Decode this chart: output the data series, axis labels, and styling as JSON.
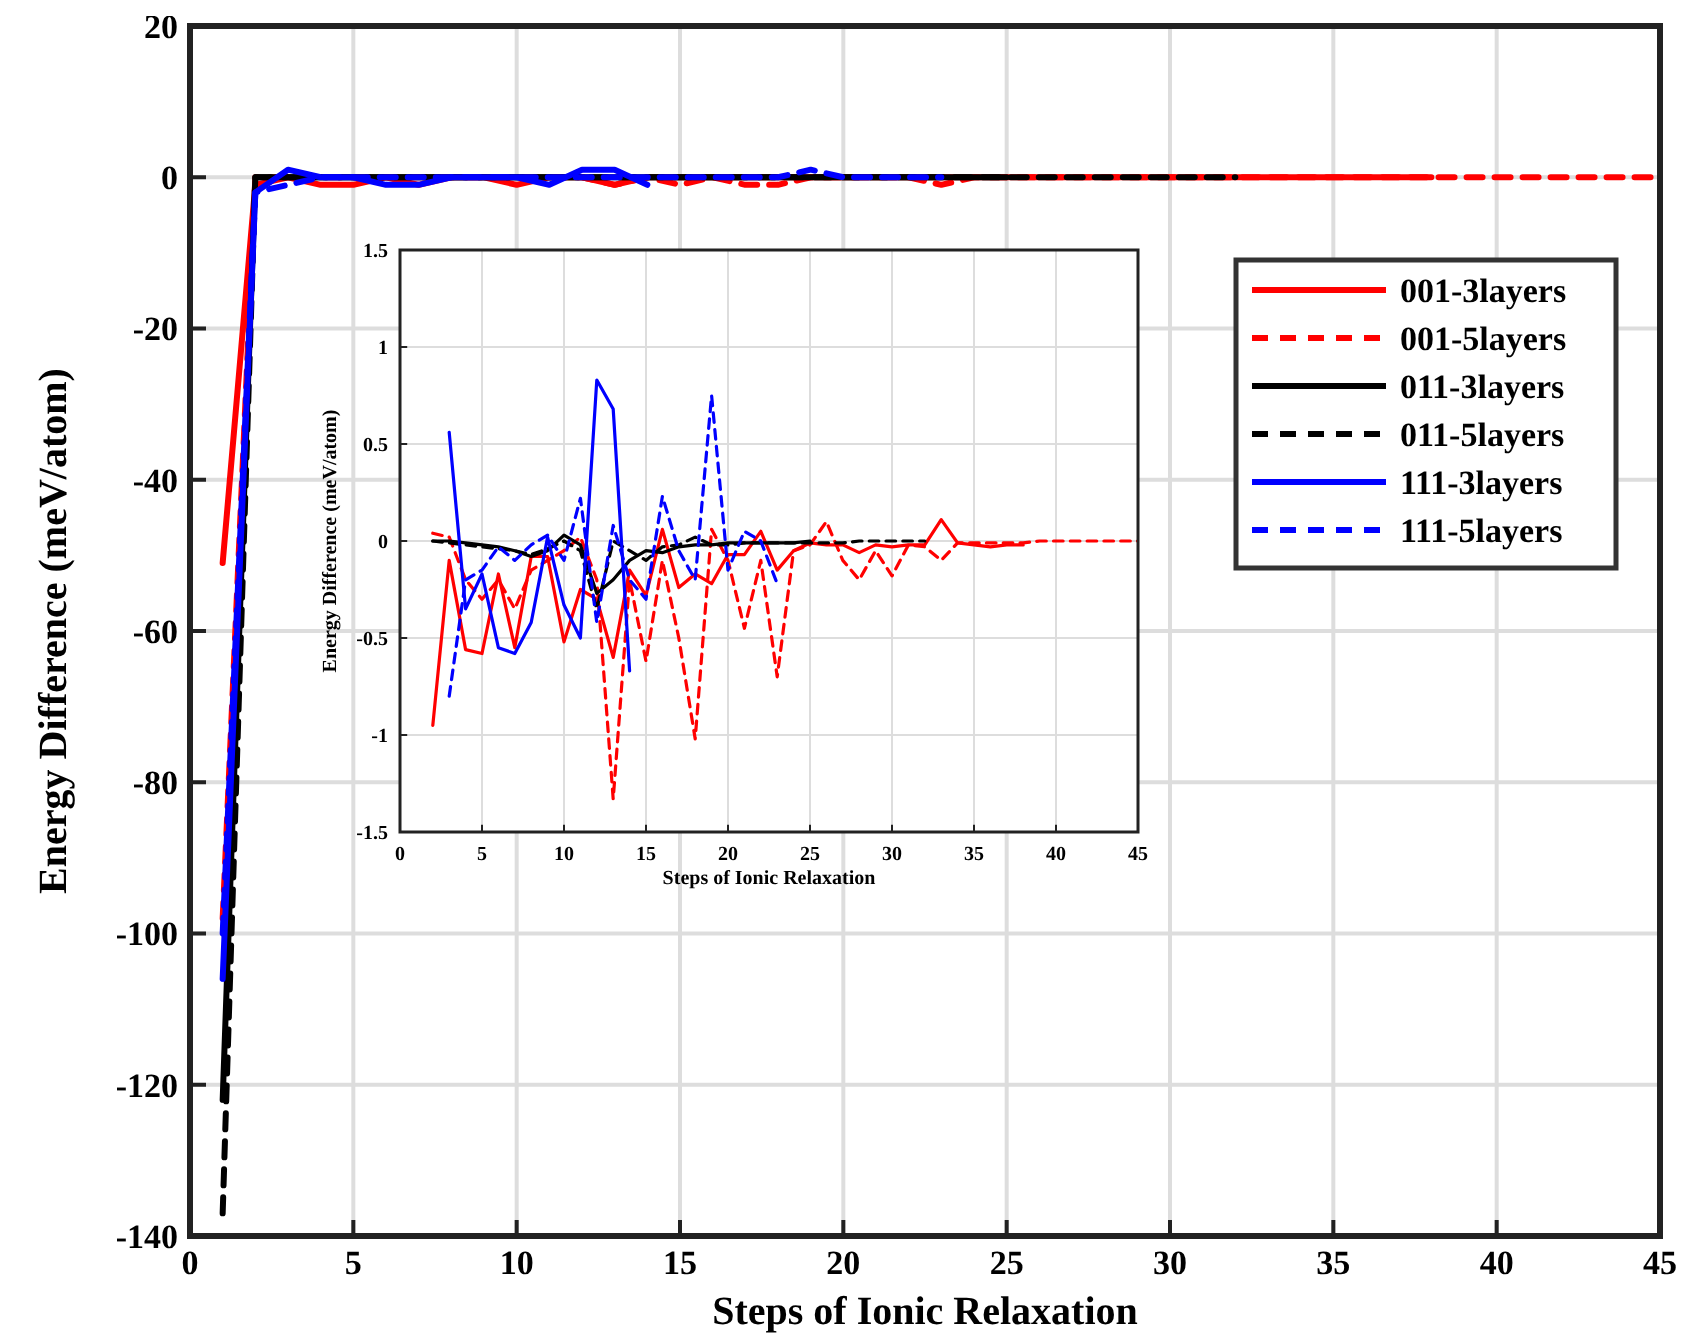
{
  "chart_data": [
    {
      "type": "line",
      "xlabel": "Steps of Ionic Relaxation",
      "ylabel": "Energy Difference (meV/atom)",
      "xlim": [
        0,
        45
      ],
      "ylim": [
        -140,
        20
      ],
      "xticks": [
        0,
        5,
        10,
        15,
        20,
        25,
        30,
        35,
        40,
        45
      ],
      "yticks": [
        -140,
        -120,
        -100,
        -80,
        -60,
        -40,
        -20,
        0,
        20
      ],
      "grid": true,
      "legend": "top right",
      "series": [
        {
          "name": "001-3layers",
          "color": "#ff0000",
          "line_style": "solid",
          "x": [
            1,
            2,
            3,
            4,
            5,
            6,
            7,
            8,
            9,
            10,
            11,
            12,
            13,
            14,
            15,
            16,
            17,
            18,
            19,
            20,
            21,
            22,
            23,
            24,
            25,
            26,
            27,
            28,
            29,
            30,
            31,
            32,
            33,
            34,
            35,
            36,
            37,
            38
          ],
          "values": [
            -51,
            -1,
            0,
            -1,
            -1,
            0,
            -1,
            0,
            0,
            -1,
            0,
            0,
            -1,
            0,
            0,
            0,
            0,
            0,
            0,
            0,
            0,
            0,
            0,
            0,
            0,
            0,
            0,
            0,
            0,
            0,
            0,
            0,
            0,
            0,
            0,
            0,
            0,
            0
          ]
        },
        {
          "name": "001-5layers",
          "color": "#ff0000",
          "line_style": "dashed",
          "x": [
            1,
            2,
            3,
            4,
            5,
            6,
            7,
            8,
            9,
            10,
            11,
            12,
            13,
            14,
            15,
            16,
            17,
            18,
            19,
            20,
            21,
            22,
            23,
            24,
            25,
            26,
            27,
            28,
            29,
            30,
            31,
            32,
            33,
            34,
            35,
            36,
            37,
            38,
            39,
            40,
            41,
            42,
            43,
            44,
            45
          ],
          "values": [
            -98,
            0,
            0,
            0,
            0,
            0,
            0,
            0,
            0,
            0,
            0,
            0,
            -1,
            0,
            -1,
            0,
            -1,
            -1,
            0,
            0,
            0,
            0,
            -1,
            0,
            0,
            0,
            0,
            0,
            0,
            0,
            0,
            0,
            0,
            0,
            0,
            0,
            0,
            0,
            0,
            0,
            0,
            0,
            0,
            0,
            0
          ]
        },
        {
          "name": "011-3layers",
          "color": "#000000",
          "line_style": "solid",
          "x": [
            1,
            2,
            3,
            4,
            5,
            6,
            7,
            8,
            9,
            10,
            11,
            12,
            13,
            14,
            15,
            16,
            17,
            18,
            19,
            20,
            21,
            22,
            23,
            24,
            25
          ],
          "values": [
            -122,
            0,
            0,
            0,
            0,
            0,
            0,
            0,
            0,
            0,
            0,
            0,
            0,
            0,
            0,
            0,
            0,
            0,
            0,
            0,
            0,
            0,
            0,
            0,
            0
          ]
        },
        {
          "name": "011-5layers",
          "color": "#000000",
          "line_style": "dashed",
          "x": [
            1,
            2,
            3,
            4,
            5,
            6,
            7,
            8,
            9,
            10,
            11,
            12,
            13,
            14,
            15,
            16,
            17,
            18,
            19,
            20,
            21,
            22,
            23,
            24,
            25,
            26,
            27,
            28,
            29,
            30,
            31,
            32
          ],
          "values": [
            -137,
            0,
            0,
            0,
            0,
            0,
            0,
            0,
            0,
            0,
            0,
            0,
            0,
            0,
            0,
            0,
            0,
            0,
            0,
            0,
            0,
            0,
            0,
            0,
            0,
            0,
            0,
            0,
            0,
            0,
            0,
            0
          ]
        },
        {
          "name": "111-3layers",
          "color": "#0000ff",
          "line_style": "solid",
          "x": [
            1,
            2,
            3,
            4,
            5,
            6,
            7,
            8,
            9,
            10,
            11,
            12,
            13,
            14
          ],
          "values": [
            -106,
            -2,
            1,
            0,
            0,
            -1,
            -1,
            0,
            0,
            0,
            -1,
            1,
            1,
            -1
          ]
        },
        {
          "name": "111-5layers",
          "color": "#0000ff",
          "line_style": "dashed",
          "x": [
            1,
            2,
            3,
            4,
            5,
            6,
            7,
            8,
            9,
            10,
            11,
            12,
            13,
            14,
            15,
            16,
            17,
            18,
            19,
            20,
            21,
            22,
            23
          ],
          "values": [
            -100,
            -2,
            -1,
            0,
            0,
            0,
            0,
            0,
            0,
            0,
            0,
            0,
            0,
            0,
            0,
            0,
            0,
            0,
            1,
            0,
            0,
            0,
            0
          ]
        }
      ]
    },
    {
      "type": "line",
      "xlabel": "Steps of Ionic Relaxation",
      "ylabel": "Energy Difference (meV/atom)",
      "xlim": [
        0,
        45
      ],
      "ylim": [
        -1.5,
        1.5
      ],
      "xticks": [
        0,
        5,
        10,
        15,
        20,
        25,
        30,
        35,
        40,
        45
      ],
      "yticks": [
        -1.5,
        -1,
        -0.5,
        0,
        0.5,
        1,
        1.5
      ],
      "grid": true,
      "series": [
        {
          "color": "#ff0000",
          "line_style": "solid",
          "x": [
            2,
            3,
            4,
            5,
            6,
            7,
            8,
            9,
            10,
            11,
            12,
            13,
            14,
            15,
            16,
            17,
            18,
            19,
            20,
            21,
            22,
            23,
            24,
            25,
            26,
            27,
            28,
            29,
            30,
            31,
            32,
            33,
            34,
            35,
            36,
            37,
            38
          ],
          "values": [
            -0.95,
            -0.1,
            -0.56,
            -0.58,
            -0.17,
            -0.55,
            -0.08,
            -0.08,
            -0.52,
            -0.25,
            -0.3,
            -0.6,
            -0.15,
            -0.28,
            0.06,
            -0.24,
            -0.17,
            -0.22,
            -0.07,
            -0.07,
            0.05,
            -0.15,
            -0.05,
            -0.01,
            -0.02,
            -0.02,
            -0.06,
            -0.02,
            -0.03,
            -0.02,
            -0.02,
            0.11,
            -0.01,
            -0.02,
            -0.03,
            -0.02,
            -0.02
          ]
        },
        {
          "color": "#ff0000",
          "line_style": "dashed",
          "x": [
            2,
            3,
            4,
            5,
            6,
            7,
            8,
            9,
            10,
            11,
            12,
            13,
            14,
            15,
            16,
            17,
            18,
            19,
            20,
            21,
            22,
            23,
            24,
            25,
            26,
            27,
            28,
            29,
            30,
            31,
            32,
            33,
            34,
            35,
            36,
            37,
            38,
            39,
            40,
            41,
            42,
            43,
            44,
            45
          ],
          "values": [
            0.04,
            0.02,
            -0.2,
            -0.3,
            -0.2,
            -0.35,
            -0.15,
            -0.1,
            -0.05,
            0.02,
            -0.2,
            -1.33,
            -0.2,
            -0.62,
            -0.1,
            -0.5,
            -1.02,
            0.06,
            -0.1,
            -0.45,
            -0.1,
            -0.7,
            -0.05,
            -0.02,
            0.1,
            -0.1,
            -0.2,
            -0.05,
            -0.18,
            -0.02,
            -0.03,
            -0.1,
            -0.01,
            -0.01,
            -0.01,
            -0.01,
            -0.01,
            0,
            0,
            0,
            0,
            0,
            0,
            0
          ]
        },
        {
          "color": "#000000",
          "line_style": "solid",
          "x": [
            2,
            3,
            4,
            5,
            6,
            7,
            8,
            9,
            10,
            11,
            12,
            13,
            14,
            15,
            16,
            17,
            18,
            19,
            20,
            21,
            22,
            23,
            24,
            25
          ],
          "values": [
            0,
            0,
            -0.01,
            -0.02,
            -0.03,
            -0.05,
            -0.08,
            -0.05,
            0.03,
            -0.02,
            -0.27,
            -0.2,
            -0.1,
            -0.05,
            -0.06,
            -0.03,
            -0.02,
            -0.02,
            -0.01,
            -0.01,
            -0.01,
            -0.01,
            -0.01,
            0
          ]
        },
        {
          "color": "#000000",
          "line_style": "dashed",
          "x": [
            2,
            3,
            4,
            5,
            6,
            7,
            8,
            9,
            10,
            11,
            12,
            13,
            14,
            15,
            16,
            17,
            18,
            19,
            20,
            21,
            22,
            23,
            24,
            25,
            26,
            27,
            28,
            29,
            30,
            31,
            32
          ],
          "values": [
            0,
            -0.01,
            -0.02,
            -0.03,
            -0.04,
            -0.05,
            -0.07,
            -0.04,
            0,
            -0.05,
            -0.35,
            0,
            -0.05,
            -0.1,
            -0.03,
            -0.02,
            0.02,
            -0.02,
            -0.02,
            -0.01,
            -0.01,
            -0.01,
            -0.01,
            -0.01,
            -0.01,
            -0.01,
            0,
            0,
            0,
            0,
            0
          ]
        },
        {
          "color": "#0000ff",
          "line_style": "solid",
          "x": [
            3,
            4,
            5,
            6,
            7,
            8,
            9,
            10,
            11,
            12,
            13,
            14
          ],
          "values": [
            0.56,
            -0.35,
            -0.17,
            -0.55,
            -0.58,
            -0.42,
            0.02,
            -0.33,
            -0.5,
            0.83,
            0.68,
            -0.67
          ]
        },
        {
          "color": "#0000ff",
          "line_style": "dashed",
          "x": [
            3,
            4,
            5,
            6,
            7,
            8,
            9,
            10,
            11,
            12,
            13,
            14,
            15,
            16,
            17,
            18,
            19,
            20,
            21,
            22,
            23
          ],
          "values": [
            -0.8,
            -0.2,
            -0.15,
            -0.03,
            -0.1,
            -0.02,
            0.03,
            -0.1,
            0.22,
            -0.42,
            0.08,
            -0.2,
            -0.3,
            0.23,
            -0.05,
            -0.2,
            0.75,
            -0.15,
            0.05,
            0,
            -0.22
          ]
        }
      ]
    }
  ]
}
